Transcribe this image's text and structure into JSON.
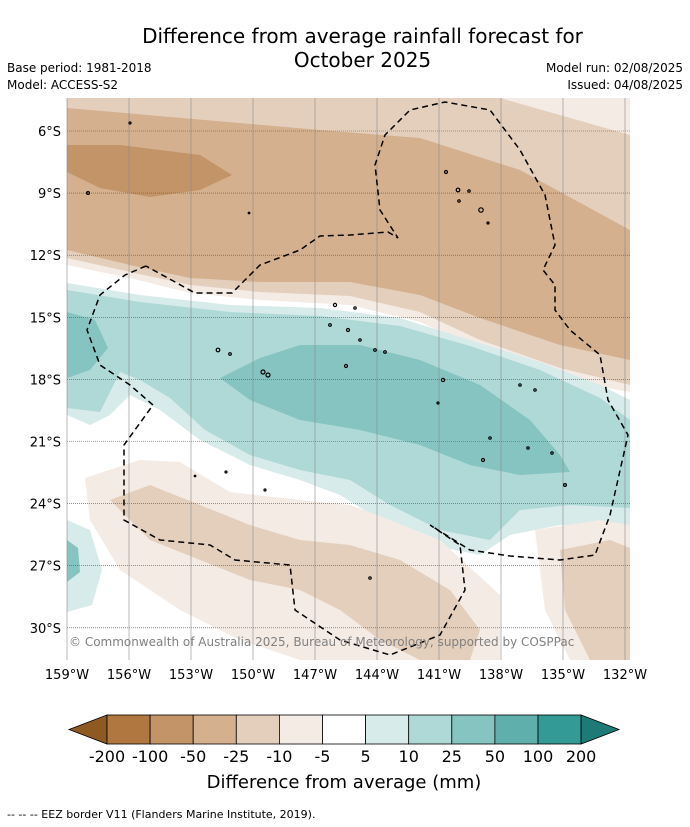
{
  "title_line1": "Difference from average rainfall forecast for",
  "title_line2": "October 2025",
  "base_period": "Base period: 1981-2018",
  "model": "Model: ACCESS-S2",
  "model_run": "Model run: 02/08/2025",
  "issued": "Issued: 04/08/2025",
  "lat_labels": [
    "6°S",
    "9°S",
    "12°S",
    "15°S",
    "18°S",
    "21°S",
    "24°S",
    "27°S",
    "30°S"
  ],
  "lon_labels": [
    "159°W",
    "156°W",
    "153°W",
    "150°W",
    "147°W",
    "144°W",
    "141°W",
    "138°W",
    "135°W",
    "132°W"
  ],
  "copyright": "© Commonwealth of Australia 2025, Bureau of Meteorology, supported by COSPPac",
  "colorbar": {
    "ticks": [
      "-200",
      "-100",
      "-50",
      "-25",
      "-10",
      "-5",
      "5",
      "10",
      "25",
      "50",
      "100",
      "200"
    ],
    "colors": [
      "#8f5a22",
      "#b07840",
      "#c39468",
      "#d4b08f",
      "#e4cfbd",
      "#f4ebe5",
      "#ffffff",
      "#d6ebea",
      "#afd9d6",
      "#86c4c1",
      "#5fb0ac",
      "#339a96",
      "#1e7a77"
    ],
    "title": "Difference from average (mm)"
  },
  "footer": "--  --  -- EEZ border V11 (Flanders Marine Institute, 2019)."
}
